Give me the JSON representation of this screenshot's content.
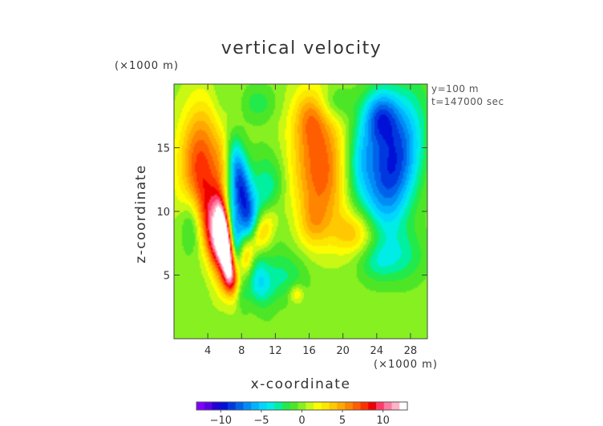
{
  "chart_data": {
    "type": "heatmap",
    "title": "vertical velocity",
    "xlabel": "x-coordinate",
    "ylabel": "z-coordinate",
    "x_unit": "(×1000 m)",
    "y_unit": "(×1000 m)",
    "annotations": [
      "y=100 m",
      "t=147000 sec"
    ],
    "xlim": [
      0,
      30
    ],
    "ylim": [
      0,
      20
    ],
    "xticks": [
      4,
      8,
      12,
      16,
      20,
      24,
      28
    ],
    "yticks": [
      5,
      10,
      15
    ],
    "colorbar": {
      "ticks": [
        -10,
        -5,
        0,
        5,
        10
      ],
      "tick_labels": [
        "−10",
        "−5",
        "0",
        "5",
        "10"
      ],
      "range": [
        -13,
        13
      ],
      "colors": [
        "#8000ff",
        "#5a00e6",
        "#1f00d6",
        "#0010d6",
        "#0038e0",
        "#0062ea",
        "#008cf5",
        "#00b2ff",
        "#00d6ff",
        "#00ece6",
        "#00f0a0",
        "#22ea4a",
        "#4de626",
        "#86f020",
        "#c8f814",
        "#fbfd00",
        "#fde600",
        "#ffc800",
        "#ffa800",
        "#ff8400",
        "#ff5e00",
        "#ff3000",
        "#ef0000",
        "#ff3a6a",
        "#ff7a9f",
        "#ffb3c6",
        "#ffffff"
      ]
    },
    "features": [
      {
        "x": 6.1,
        "z": 7.6,
        "value": 14,
        "sx": 0.55,
        "sz": 2.2,
        "rot": -0.2
      },
      {
        "x": 5.2,
        "z": 7.4,
        "value": 9,
        "sx": 0.9,
        "sz": 2.0,
        "rot": -0.25
      },
      {
        "x": 3.0,
        "z": 14.2,
        "value": 6.5,
        "sx": 1.8,
        "sz": 3.2,
        "rot": 0.1
      },
      {
        "x": 4.3,
        "z": 10.0,
        "value": 4.5,
        "sx": 1.2,
        "sz": 2.6,
        "rot": -0.2
      },
      {
        "x": 6.2,
        "z": 15.2,
        "value": 4,
        "sx": 0.9,
        "sz": 2.5,
        "rot": 0.1
      },
      {
        "x": 9.3,
        "z": 7.3,
        "value": 7,
        "sx": 0.9,
        "sz": 2.6,
        "rot": 0.75
      },
      {
        "x": 8.0,
        "z": 11.5,
        "value": -9,
        "sx": 0.9,
        "sz": 4.2,
        "rot": -0.3
      },
      {
        "x": 7.3,
        "z": 7.2,
        "value": -6,
        "sx": 0.6,
        "sz": 2.4,
        "rot": -0.15
      },
      {
        "x": 11.2,
        "z": 11.5,
        "value": -3.5,
        "sx": 1.6,
        "sz": 2.2,
        "rot": 0
      },
      {
        "x": 17.5,
        "z": 13.3,
        "value": 7,
        "sx": 2.6,
        "sz": 3.4,
        "rot": -0.15
      },
      {
        "x": 16.2,
        "z": 17.5,
        "value": 3.5,
        "sx": 1.4,
        "sz": 1.6,
        "rot": 0
      },
      {
        "x": 21.5,
        "z": 8.3,
        "value": 4,
        "sx": 1.8,
        "sz": 1.2,
        "rot": 0
      },
      {
        "x": 26.0,
        "z": 13.5,
        "value": -9,
        "sx": 2.0,
        "sz": 3.8,
        "rot": 0.35
      },
      {
        "x": 22.0,
        "z": 14.0,
        "value": -5,
        "sx": 1.6,
        "sz": 2.6,
        "rot": 0.2
      },
      {
        "x": 27.0,
        "z": 6.5,
        "value": -2.5,
        "sx": 2.0,
        "sz": 1.5,
        "rot": 0
      },
      {
        "x": 13.0,
        "z": 5.0,
        "value": -2.5,
        "sx": 2.0,
        "sz": 1.4,
        "rot": 0
      },
      {
        "x": 10.0,
        "z": 4.0,
        "value": -2,
        "sx": 1.3,
        "sz": 1.0,
        "rot": 0
      },
      {
        "x": 7.0,
        "z": 4.5,
        "value": 2.5,
        "sx": 0.8,
        "sz": 0.7,
        "rot": 0
      },
      {
        "x": 14.5,
        "z": 3.5,
        "value": 3,
        "sx": 0.6,
        "sz": 0.5,
        "rot": 0
      },
      {
        "x": 16.5,
        "z": 9.0,
        "value": 2.5,
        "sx": 1.2,
        "sz": 1.4,
        "rot": 0
      },
      {
        "x": 2.0,
        "z": 9.0,
        "value": -3,
        "sx": 0.9,
        "sz": 1.6,
        "rot": 0
      },
      {
        "x": 24.0,
        "z": 6.0,
        "value": -1.8,
        "sx": 1.5,
        "sz": 1.0,
        "rot": 0
      },
      {
        "x": 19.0,
        "z": 18.5,
        "value": -2.5,
        "sx": 1.5,
        "sz": 1.0,
        "rot": 0
      },
      {
        "x": 10.0,
        "z": 18.5,
        "value": -2,
        "sx": 1.5,
        "sz": 1.0,
        "rot": 0
      },
      {
        "x": 24.5,
        "z": 17.5,
        "value": -6,
        "sx": 1.4,
        "sz": 1.5,
        "rot": 0
      }
    ]
  }
}
